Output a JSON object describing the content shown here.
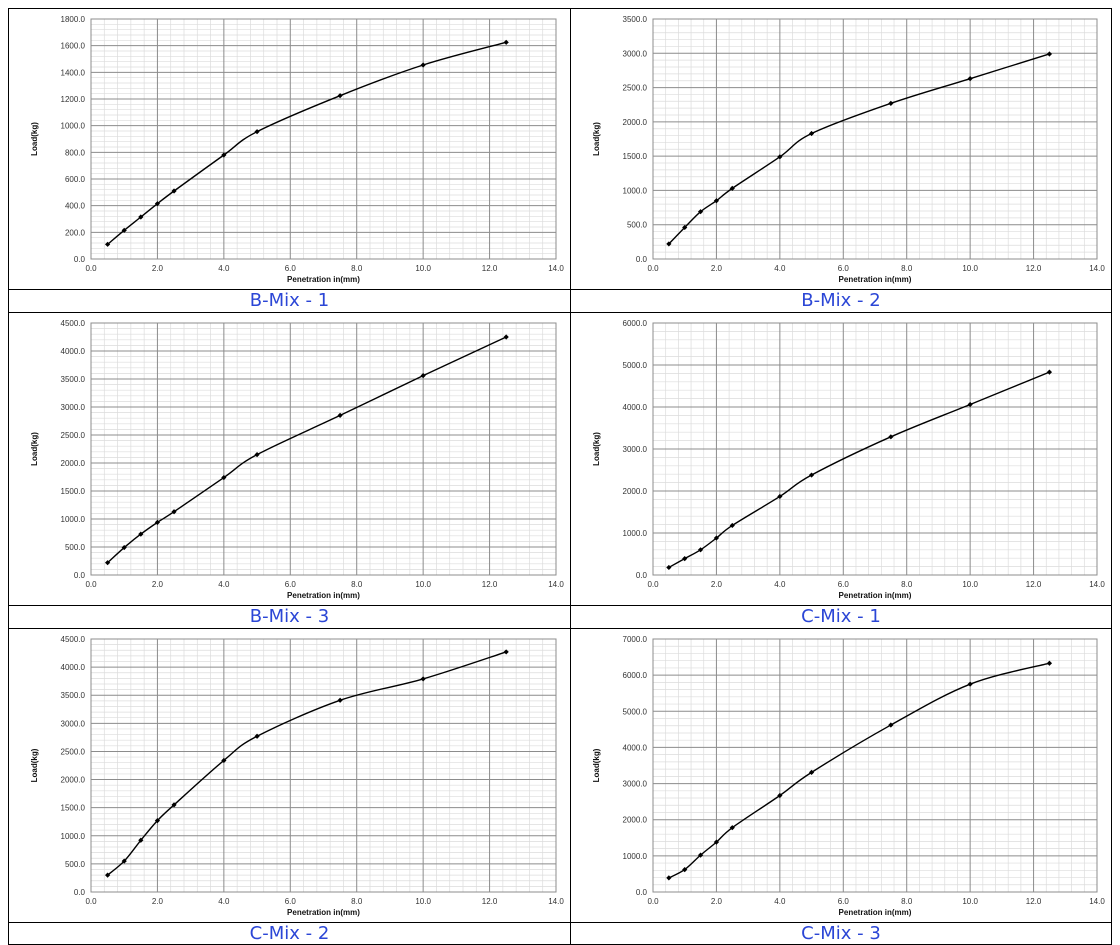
{
  "chart_data": [
    {
      "type": "line",
      "caption": "B-Mix - 1",
      "xlabel": "Penetration in(mm)",
      "ylabel": "Load(kg)",
      "xlim": [
        0,
        14
      ],
      "xticks": [
        0,
        2,
        4,
        6,
        8,
        10,
        12,
        14
      ],
      "xtick_labels": [
        "0.0",
        "2.0",
        "4.0",
        "6.0",
        "8.0",
        "10.0",
        "12.0",
        "14.0"
      ],
      "ylim": [
        0,
        1800
      ],
      "yticks": [
        0,
        200,
        400,
        600,
        800,
        1000,
        1200,
        1400,
        1600,
        1800
      ],
      "ytick_labels": [
        "0.0",
        "200.0",
        "400.0",
        "600.0",
        "800.0",
        "1000.0",
        "1200.0",
        "1400.0",
        "1600.0",
        "1800.0"
      ],
      "grid": true,
      "marker": "diamond",
      "line_color": "#000000",
      "x": [
        0.5,
        1.0,
        1.5,
        2.0,
        2.5,
        4.0,
        5.0,
        7.5,
        10.0,
        12.5
      ],
      "y": [
        110,
        215,
        315,
        415,
        510,
        780,
        955,
        1225,
        1455,
        1625
      ]
    },
    {
      "type": "line",
      "caption": "B-Mix - 2",
      "xlabel": "Penetration in(mm)",
      "ylabel": "Load(kg)",
      "xlim": [
        0,
        14
      ],
      "xticks": [
        0,
        2,
        4,
        6,
        8,
        10,
        12,
        14
      ],
      "xtick_labels": [
        "0.0",
        "2.0",
        "4.0",
        "6.0",
        "8.0",
        "10.0",
        "12.0",
        "14.0"
      ],
      "ylim": [
        0,
        3500
      ],
      "yticks": [
        0,
        500,
        1000,
        1500,
        2000,
        2500,
        3000,
        3500
      ],
      "ytick_labels": [
        "0.0",
        "500.0",
        "1000.0",
        "1500.0",
        "2000.0",
        "2500.0",
        "3000.0",
        "3500.0"
      ],
      "grid": true,
      "marker": "diamond",
      "line_color": "#000000",
      "x": [
        0.5,
        1.0,
        1.5,
        2.0,
        2.5,
        4.0,
        5.0,
        7.5,
        10.0,
        12.5
      ],
      "y": [
        220,
        460,
        690,
        850,
        1030,
        1490,
        1830,
        2270,
        2630,
        2990
      ]
    },
    {
      "type": "line",
      "caption": "B-Mix - 3",
      "xlabel": "Penetration in(mm)",
      "ylabel": "Load(kg)",
      "xlim": [
        0,
        14
      ],
      "xticks": [
        0,
        2,
        4,
        6,
        8,
        10,
        12,
        14
      ],
      "xtick_labels": [
        "0.0",
        "2.0",
        "4.0",
        "6.0",
        "8.0",
        "10.0",
        "12.0",
        "14.0"
      ],
      "ylim": [
        0,
        4500
      ],
      "yticks": [
        0,
        500,
        1000,
        1500,
        2000,
        2500,
        3000,
        3500,
        4000,
        4500
      ],
      "ytick_labels": [
        "0.0",
        "500.0",
        "1000.0",
        "1500.0",
        "2000.0",
        "2500.0",
        "3000.0",
        "3500.0",
        "4000.0",
        "4500.0"
      ],
      "grid": true,
      "marker": "diamond",
      "line_color": "#000000",
      "x": [
        0.5,
        1.0,
        1.5,
        2.0,
        2.5,
        4.0,
        5.0,
        7.5,
        10.0,
        12.5
      ],
      "y": [
        220,
        490,
        730,
        940,
        1130,
        1740,
        2150,
        2850,
        3560,
        4250
      ]
    },
    {
      "type": "line",
      "caption": "C-Mix - 1",
      "xlabel": "Penetration in(mm)",
      "ylabel": "Load(kg)",
      "xlim": [
        0,
        14
      ],
      "xticks": [
        0,
        2,
        4,
        6,
        8,
        10,
        12,
        14
      ],
      "xtick_labels": [
        "0.0",
        "2.0",
        "4.0",
        "6.0",
        "8.0",
        "10.0",
        "12.0",
        "14.0"
      ],
      "ylim": [
        0,
        6000
      ],
      "yticks": [
        0,
        1000,
        2000,
        3000,
        4000,
        5000,
        6000
      ],
      "ytick_labels": [
        "0.0",
        "1000.0",
        "2000.0",
        "3000.0",
        "4000.0",
        "5000.0",
        "6000.0"
      ],
      "grid": true,
      "marker": "diamond",
      "line_color": "#000000",
      "x": [
        0.5,
        1.0,
        1.5,
        2.0,
        2.5,
        4.0,
        5.0,
        7.5,
        10.0,
        12.5
      ],
      "y": [
        180,
        390,
        600,
        880,
        1180,
        1870,
        2380,
        3290,
        4060,
        4830
      ]
    },
    {
      "type": "line",
      "caption": "C-Mix - 2",
      "xlabel": "Penetration in(mm)",
      "ylabel": "Load(kg)",
      "xlim": [
        0,
        14
      ],
      "xticks": [
        0,
        2,
        4,
        6,
        8,
        10,
        12,
        14
      ],
      "xtick_labels": [
        "0.0",
        "2.0",
        "4.0",
        "6.0",
        "8.0",
        "10.0",
        "12.0",
        "14.0"
      ],
      "ylim": [
        0,
        4500
      ],
      "yticks": [
        0,
        500,
        1000,
        1500,
        2000,
        2500,
        3000,
        3500,
        4000,
        4500
      ],
      "ytick_labels": [
        "0.0",
        "500.0",
        "1000.0",
        "1500.0",
        "2000.0",
        "2500.0",
        "3000.0",
        "3500.0",
        "4000.0",
        "4500.0"
      ],
      "grid": true,
      "marker": "diamond",
      "line_color": "#000000",
      "x": [
        0.5,
        1.0,
        1.5,
        2.0,
        2.5,
        4.0,
        5.0,
        7.5,
        10.0,
        12.5
      ],
      "y": [
        300,
        550,
        920,
        1270,
        1550,
        2340,
        2770,
        3410,
        3790,
        4270
      ]
    },
    {
      "type": "line",
      "caption": "C-Mix - 3",
      "xlabel": "Penetration in(mm)",
      "ylabel": "Load(kg)",
      "xlim": [
        0,
        14
      ],
      "xticks": [
        0,
        2,
        4,
        6,
        8,
        10,
        12,
        14
      ],
      "xtick_labels": [
        "0.0",
        "2.0",
        "4.0",
        "6.0",
        "8.0",
        "10.0",
        "12.0",
        "14.0"
      ],
      "ylim": [
        0,
        7000
      ],
      "yticks": [
        0,
        1000,
        2000,
        3000,
        4000,
        5000,
        6000,
        7000
      ],
      "ytick_labels": [
        "0.0",
        "1000.0",
        "2000.0",
        "3000.0",
        "4000.0",
        "5000.0",
        "6000.0",
        "7000.0"
      ],
      "grid": true,
      "marker": "diamond",
      "line_color": "#000000",
      "x": [
        0.5,
        1.0,
        1.5,
        2.0,
        2.5,
        4.0,
        5.0,
        7.5,
        10.0,
        12.5
      ],
      "y": [
        390,
        620,
        1020,
        1380,
        1780,
        2670,
        3310,
        4620,
        5750,
        6330
      ]
    }
  ]
}
